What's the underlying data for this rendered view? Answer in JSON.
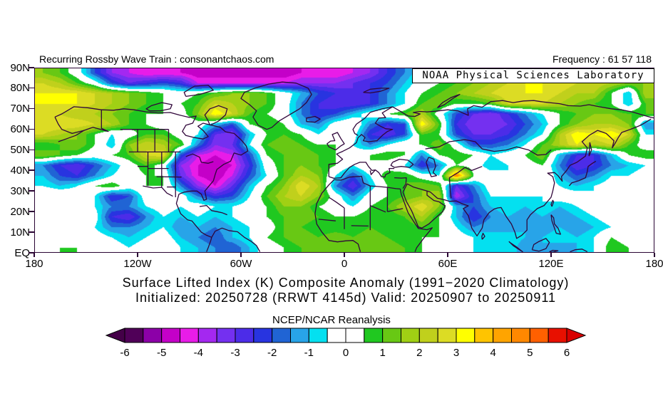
{
  "header": {
    "left": "Recurring Rossby Wave Train : consonantchaos.com",
    "right": "Frequency : 61 57 118"
  },
  "map": {
    "overlay_label": "NOAA Physical Sciences Laboratory",
    "coastline_color": "#30063a",
    "frame_color": "#2a0433"
  },
  "title": {
    "line1": "Surface Lifted Index (K) Composite Anomaly (1991−2020 Climatology)",
    "line2": "Initialized: 20250728 (RRWT 4145d) Valid: 20250907 to 20250911"
  },
  "axes": {
    "y_ticks": [
      "90N",
      "80N",
      "70N",
      "60N",
      "50N",
      "40N",
      "30N",
      "20N",
      "10N",
      "EQ"
    ],
    "x_ticks": [
      "180",
      "120W",
      "60W",
      "0",
      "60E",
      "120E",
      "180"
    ]
  },
  "colorbar": {
    "label": "NCEP/NCAR Reanalysis",
    "ticks": [
      -6,
      -5,
      -4,
      -3,
      -2,
      -1,
      0,
      1,
      2,
      3,
      4,
      5,
      6
    ],
    "cell_colors": [
      "#500058",
      "#8c00a8",
      "#c400c8",
      "#e81ce8",
      "#a428f0",
      "#7430f0",
      "#4c2ce8",
      "#2834e0",
      "#2064d4",
      "#28a4e8",
      "#04e0f0",
      "#ffffff",
      "#ffffff",
      "#20c820",
      "#68c814",
      "#a0d014",
      "#c0d01c",
      "#dcdc24",
      "#ffff00",
      "#ffc400",
      "#ffa400",
      "#ff8800",
      "#ff6000",
      "#e81000"
    ],
    "left_arrow_color": "#440048",
    "right_arrow_color": "#d80000"
  },
  "chart_data": {
    "type": "heatmap",
    "title": "Surface Lifted Index (K) Composite Anomaly (1991−2020 Climatology)",
    "subtitle": "Initialized: 20250728 (RRWT 4145d) Valid: 20250907 to 20250911",
    "source": "NCEP/NCAR Reanalysis",
    "units": "K",
    "lon_min": -180,
    "lon_max": 180,
    "lat_min": 0,
    "lat_max": 90,
    "lon_step": 10,
    "lat_step": 5,
    "levels_min": -6,
    "levels_max": 6,
    "level_step": 0.5,
    "values": [
      [
        1.5,
        1,
        0,
        -2,
        -3.5,
        -4,
        -4.5,
        -4.5,
        -4.5,
        -5,
        -5,
        -5,
        -5,
        -5,
        -5,
        -4.5,
        -4.5,
        -4.5,
        -4,
        -3.5,
        -2.5,
        -1.5,
        -0.5,
        0,
        0.5,
        1,
        1.5,
        2,
        2.5,
        2.5,
        2.5,
        2.5,
        2,
        2,
        1.5,
        1.5
      ],
      [
        2.5,
        2,
        1,
        0,
        -2,
        -3,
        -2.5,
        -2,
        -2.5,
        -4,
        -4,
        -4,
        -4,
        -4,
        -4,
        -3.5,
        -3.5,
        -3.5,
        -3,
        -2.5,
        -2,
        -1,
        0,
        0.5,
        1,
        1.5,
        2,
        2.5,
        3,
        3,
        3,
        2.5,
        2.5,
        2,
        1.5,
        1.5
      ],
      [
        3,
        3,
        3,
        2.5,
        2,
        1.5,
        1,
        0.5,
        0,
        0.5,
        1,
        1.5,
        1.5,
        1,
        0,
        -1,
        -2,
        -2.5,
        -3,
        -2.5,
        -1.5,
        -0.5,
        0.5,
        1,
        1.5,
        2,
        2.5,
        3,
        3,
        3,
        2.5,
        2,
        2,
        0.5,
        -1,
        2
      ],
      [
        3,
        3,
        3,
        2.5,
        2,
        1.5,
        1,
        0.5,
        0.5,
        1,
        2.5,
        2,
        1.5,
        1,
        0,
        -1.5,
        -2.5,
        -3,
        -3,
        -2.5,
        -1.5,
        -0.5,
        1,
        1.5,
        0.5,
        0.5,
        1,
        2.5,
        2.5,
        2.5,
        2,
        1.5,
        1,
        0.5,
        -1,
        1
      ],
      [
        2.5,
        2.5,
        2,
        2,
        1.5,
        1,
        0.5,
        0.5,
        0,
        1.5,
        3.5,
        2.5,
        1,
        0.5,
        0,
        -1.5,
        -2.5,
        -2,
        -1,
        0,
        0.5,
        1,
        2,
        0,
        -2,
        -3,
        -3.5,
        -2.5,
        -1.5,
        -0.5,
        0.5,
        1,
        1.5,
        1.5,
        1,
        1
      ],
      [
        3,
        3,
        3,
        2.5,
        2,
        1,
        0.5,
        0,
        -0.5,
        0,
        -1,
        -2,
        0.5,
        1,
        0.5,
        -1,
        -1.5,
        0,
        0.5,
        -1.5,
        -2.5,
        -2,
        3.5,
        1,
        -2.5,
        -3.5,
        -3.5,
        -3,
        -2,
        -1,
        0.5,
        1.5,
        2,
        2,
        1.5,
        -1.5
      ],
      [
        2.5,
        2,
        1.5,
        0.5,
        -0.5,
        0,
        1,
        1,
        0,
        -0.5,
        -3,
        -3.5,
        -1,
        0.5,
        1,
        0.5,
        -0.5,
        0.5,
        0,
        -2.5,
        -3,
        -2,
        1,
        0.5,
        -2,
        -3,
        -3,
        -2.5,
        -1.5,
        -0.5,
        2,
        3.5,
        3,
        3.5,
        2.5,
        -0.5
      ],
      [
        0.5,
        1,
        1.5,
        0.5,
        -1,
        1.5,
        2.5,
        2,
        1,
        -1.5,
        -3.5,
        -3,
        -0.5,
        1,
        1.5,
        1,
        0.5,
        0.5,
        -0.5,
        -1.5,
        -0.5,
        0.5,
        0.5,
        1.5,
        0,
        -2,
        -2,
        -1.5,
        -0.5,
        1,
        2,
        3,
        2,
        2.5,
        1,
        0
      ],
      [
        1.5,
        1,
        0.5,
        0,
        0.5,
        1,
        2.5,
        3,
        -2,
        -4,
        -4.5,
        -4,
        -2,
        0.5,
        1,
        1.5,
        1,
        0.5,
        0,
        0.5,
        1,
        0.5,
        -1.5,
        0.5,
        1,
        0.5,
        -0.5,
        0,
        0.5,
        1.5,
        -1,
        -2.5,
        -2.5,
        -1,
        0.5,
        1
      ],
      [
        -1.5,
        -2.5,
        -3,
        -2,
        -1,
        0,
        1,
        0,
        -3.5,
        -4.5,
        -5,
        -4.5,
        -2.5,
        0,
        1,
        1.5,
        1,
        0.5,
        -0.5,
        0.5,
        0,
        -0.5,
        -2.5,
        -1.5,
        0.5,
        0,
        -1,
        -0.5,
        0,
        0.5,
        -1.5,
        -3,
        -2.5,
        -1.5,
        -1,
        -0.5
      ],
      [
        -1,
        -2,
        -2.5,
        -1.5,
        -0.5,
        0,
        0.5,
        0.5,
        -3,
        -4.5,
        -5,
        -4,
        -2,
        -0.5,
        1,
        2,
        1.5,
        -0.5,
        -2,
        -0.5,
        1,
        1,
        0,
        -0.5,
        5,
        0.5,
        0,
        -0.5,
        0.5,
        0.5,
        -1,
        -2,
        -1.5,
        -0.5,
        -0.5,
        0
      ],
      [
        -0.5,
        -1,
        -0.5,
        0.5,
        1,
        0,
        0.5,
        0.5,
        -1.5,
        -3.5,
        -4.5,
        -3,
        -1,
        0.5,
        1.5,
        3,
        2,
        -1.5,
        -3,
        -1,
        0.5,
        1,
        1.5,
        1,
        -3,
        -1.5,
        0,
        0.5,
        0.5,
        0,
        -0.5,
        -1,
        -0.5,
        0,
        0.5,
        0
      ],
      [
        0.5,
        0.5,
        0,
        -0.5,
        -2.5,
        -2,
        0,
        0.5,
        0,
        -1.5,
        -2.5,
        -2,
        -0.5,
        1,
        2,
        2.5,
        1.5,
        0,
        -1.5,
        0,
        0.5,
        1,
        1.5,
        2,
        -4,
        -2,
        -0.5,
        -0.5,
        -0.5,
        -0.5,
        0,
        0,
        -0.5,
        0,
        0,
        0.5
      ],
      [
        0,
        0,
        0,
        -0.5,
        -1.5,
        -1.5,
        -0.5,
        0,
        -0.5,
        0,
        -0.5,
        -0.5,
        0,
        0.5,
        1.5,
        1.5,
        0.5,
        0,
        -0.5,
        0.5,
        1,
        2,
        3,
        1.5,
        -1,
        -2,
        -1,
        -0.5,
        -1,
        -0.5,
        -1,
        -0.5,
        0,
        0.5,
        -0.5,
        0
      ],
      [
        0.5,
        0,
        0,
        0,
        -2.5,
        -3,
        -1.5,
        -0.5,
        -1,
        -0.5,
        -1,
        -0.5,
        0,
        0.5,
        1,
        1.5,
        1,
        0.5,
        0.5,
        1,
        0.5,
        1,
        2,
        0.5,
        -1,
        -2.5,
        -1.5,
        -1,
        -1.5,
        -1,
        -1.5,
        -1,
        -0.5,
        0,
        0.5,
        0
      ],
      [
        0,
        0.5,
        0,
        -0.5,
        -1.5,
        -1.5,
        -1,
        -0.5,
        -1.5,
        -1,
        -1.5,
        -1,
        -0.5,
        0,
        1,
        1,
        0.5,
        0.5,
        0.5,
        1,
        0.5,
        0.5,
        1,
        0.5,
        -0.5,
        -1.5,
        -1,
        -1.5,
        -1,
        -1.5,
        -1,
        -1.5,
        -1,
        -0.5,
        0,
        0.5
      ],
      [
        0.5,
        0,
        0,
        0,
        -0.5,
        -1,
        -0.5,
        0,
        -1,
        -1.5,
        -2,
        -1,
        -0.5,
        0.5,
        1,
        1.5,
        1,
        1.5,
        1,
        1.5,
        1,
        0.5,
        0.5,
        0.5,
        0,
        -0.5,
        -1,
        -0.5,
        -1,
        -1,
        -0.5,
        -1,
        -0.5,
        0.5,
        0,
        0
      ],
      [
        0,
        0.5,
        0.5,
        0,
        0,
        -0.5,
        0,
        0.5,
        -0.5,
        -1,
        -1.5,
        -2,
        -1,
        0,
        0.5,
        1,
        1.5,
        1,
        1.5,
        1,
        1.5,
        1,
        0.5,
        0,
        0,
        -0.5,
        -1,
        -0.5,
        -1.5,
        -1,
        -1.5,
        -1,
        -0.5,
        1,
        0.5,
        0
      ]
    ]
  }
}
